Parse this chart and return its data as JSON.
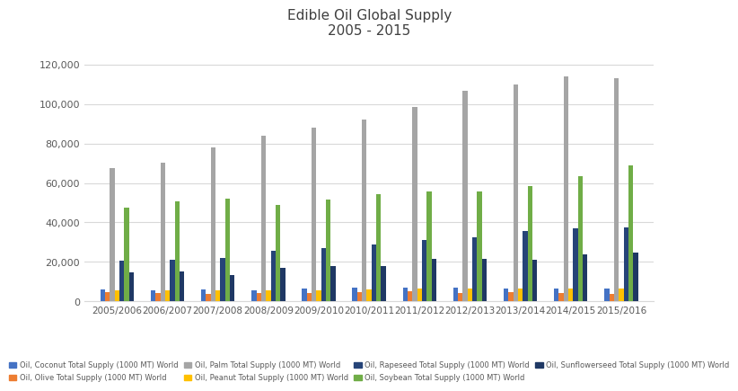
{
  "years": [
    "2005/2006",
    "2006/2007",
    "2007/2008",
    "2008/2009",
    "2009/2010",
    "2010/2011",
    "2011/2012",
    "2012/2013",
    "2013/2014",
    "2014/2015",
    "2015/2016"
  ],
  "series_order": [
    "Oil, Coconut Total Supply (1000 MT) World",
    "Oil, Olive Total Supply (1000 MT) World",
    "Oil, Palm Total Supply (1000 MT) World",
    "Oil, Peanut Total Supply (1000 MT) World",
    "Oil, Rapeseed Total Supply (1000 MT) World",
    "Oil, Soybean Total Supply (1000 MT) World",
    "Oil, Sunflowerseed Total Supply (1000 MT) World"
  ],
  "series_colors": {
    "Oil, Coconut Total Supply (1000 MT) World": "#4472C4",
    "Oil, Olive Total Supply (1000 MT) World": "#ED7D31",
    "Oil, Palm Total Supply (1000 MT) World": "#A5A5A5",
    "Oil, Peanut Total Supply (1000 MT) World": "#FFC000",
    "Oil, Rapeseed Total Supply (1000 MT) World": "#264478",
    "Oil, Soybean Total Supply (1000 MT) World": "#70AD47",
    "Oil, Sunflowerseed Total Supply (1000 MT) World": "#1F3864"
  },
  "series_values": {
    "Oil, Coconut Total Supply (1000 MT) World": [
      6100,
      5600,
      6100,
      5700,
      6600,
      6700,
      7100,
      7100,
      6600,
      6500,
      6600
    ],
    "Oil, Olive Total Supply (1000 MT) World": [
      4600,
      4100,
      3600,
      4100,
      4200,
      4600,
      5100,
      4100,
      4600,
      4100,
      3700
    ],
    "Oil, Palm Total Supply (1000 MT) World": [
      67500,
      70500,
      78000,
      84000,
      88000,
      92000,
      98500,
      107000,
      110000,
      114000,
      113000
    ],
    "Oil, Peanut Total Supply (1000 MT) World": [
      5500,
      5500,
      5500,
      5600,
      5600,
      6000,
      6500,
      6600,
      6600,
      6600,
      6600
    ],
    "Oil, Rapeseed Total Supply (1000 MT) World": [
      20500,
      21000,
      22000,
      25500,
      27000,
      29000,
      31000,
      32500,
      35500,
      37000,
      37500
    ],
    "Oil, Soybean Total Supply (1000 MT) World": [
      47500,
      50500,
      52000,
      49000,
      51500,
      54500,
      55500,
      55500,
      58500,
      63500,
      69000
    ],
    "Oil, Sunflowerseed Total Supply (1000 MT) World": [
      14500,
      15000,
      13500,
      17000,
      18000,
      18000,
      21500,
      21500,
      21000,
      24000,
      24500
    ]
  },
  "title_line1": "Edible Oil Global Supply",
  "title_line2": "2005 - 2015",
  "ylim": [
    0,
    130000
  ],
  "yticks": [
    0,
    20000,
    40000,
    60000,
    80000,
    100000,
    120000
  ],
  "background_color": "#FFFFFF",
  "grid_color": "#D9D9D9",
  "text_color": "#595959",
  "title_color": "#404040",
  "bar_width": 0.095,
  "legend_rows": [
    [
      [
        "Oil, Coconut Total Supply (1000 MT) World",
        "#4472C4"
      ],
      [
        "Oil, Olive Total Supply (1000 MT) World",
        "#ED7D31"
      ],
      [
        "Oil, Palm Total Supply (1000 MT) World",
        "#A5A5A5"
      ],
      [
        "Oil, Peanut Total Supply (1000 MT) World",
        "#FFC000"
      ]
    ],
    [
      [
        "Oil, Rapeseed Total Supply (1000 MT) World",
        "#264478"
      ],
      [
        "Oil, Soybean Total Supply (1000 MT) World",
        "#70AD47"
      ],
      [
        "Oil, Sunflowerseed Total Supply (1000 MT) World",
        "#1F3864"
      ]
    ]
  ]
}
